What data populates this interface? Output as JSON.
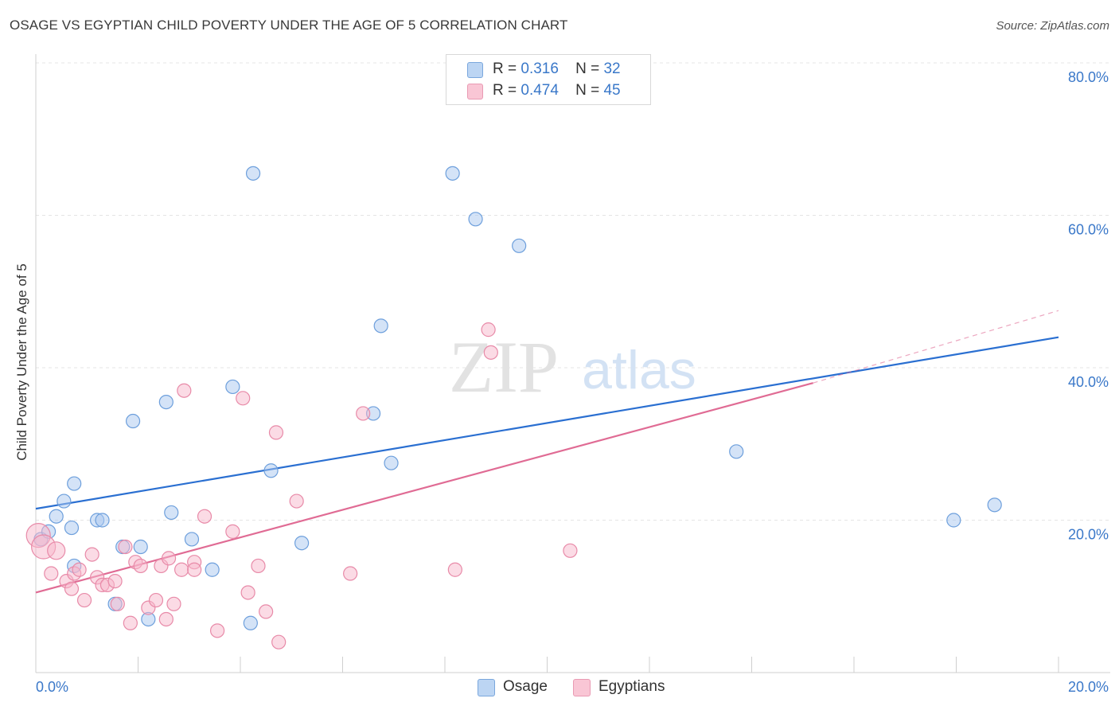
{
  "title": "OSAGE VS EGYPTIAN CHILD POVERTY UNDER THE AGE OF 5 CORRELATION CHART",
  "source": "Source: ZipAtlas.com",
  "watermark": {
    "zip": "ZIP",
    "atlas": "atlas"
  },
  "colors": {
    "osage": "#a9c8f0",
    "osage_stroke": "#6d9fdc",
    "osage_line": "#2a6fd1",
    "egyptians": "#f7b8cb",
    "egyptians_stroke": "#e88aa8",
    "egyptians_line": "#e06b94",
    "tick_label": "#3a78c9"
  },
  "legend_top": {
    "rows": [
      {
        "r_label": "R =",
        "r_value": "0.316",
        "n_label": "N =",
        "n_value": "32"
      },
      {
        "r_label": "R =",
        "r_value": "0.474",
        "n_label": "N =",
        "n_value": "45"
      }
    ]
  },
  "chart_data": {
    "type": "scatter",
    "title": "OSAGE VS EGYPTIAN CHILD POVERTY UNDER THE AGE OF 5 CORRELATION CHART",
    "xlabel": "",
    "ylabel": "Child Poverty Under the Age of 5",
    "xlim": [
      0,
      20
    ],
    "ylim": [
      0,
      80
    ],
    "x_tick_labels": [
      "0.0%",
      "20.0%"
    ],
    "y_ticks": [
      20,
      40,
      60,
      80
    ],
    "y_tick_labels": [
      "20.0%",
      "40.0%",
      "60.0%",
      "80.0%"
    ],
    "grid": true,
    "legend": "bottom-center",
    "series": [
      {
        "name": "Osage",
        "points": [
          [
            0.1,
            17.5
          ],
          [
            0.25,
            18.5
          ],
          [
            0.4,
            20.5
          ],
          [
            0.55,
            22.5
          ],
          [
            0.75,
            24.8
          ],
          [
            0.7,
            19
          ],
          [
            0.75,
            14
          ],
          [
            1.2,
            20
          ],
          [
            1.3,
            20
          ],
          [
            1.55,
            9
          ],
          [
            1.7,
            16.5
          ],
          [
            1.9,
            33
          ],
          [
            2.05,
            16.5
          ],
          [
            2.2,
            7
          ],
          [
            2.55,
            35.5
          ],
          [
            2.65,
            21
          ],
          [
            3.05,
            17.5
          ],
          [
            3.45,
            13.5
          ],
          [
            3.85,
            37.5
          ],
          [
            4.2,
            6.5
          ],
          [
            4.25,
            65.5
          ],
          [
            4.6,
            26.5
          ],
          [
            5.2,
            17
          ],
          [
            6.6,
            34
          ],
          [
            6.75,
            45.5
          ],
          [
            6.95,
            27.5
          ],
          [
            8.15,
            65.5
          ],
          [
            8.6,
            59.5
          ],
          [
            9.45,
            56
          ],
          [
            13.7,
            29
          ],
          [
            17.95,
            20
          ],
          [
            18.75,
            22
          ]
        ],
        "trend": {
          "x": [
            0,
            20
          ],
          "y": [
            21.5,
            44
          ]
        },
        "R": 0.316,
        "N": 32
      },
      {
        "name": "Egyptians",
        "points": [
          [
            0.05,
            18
          ],
          [
            0.15,
            16.5
          ],
          [
            0.3,
            13
          ],
          [
            0.4,
            16
          ],
          [
            0.6,
            12
          ],
          [
            0.7,
            11
          ],
          [
            0.75,
            13
          ],
          [
            0.85,
            13.5
          ],
          [
            0.95,
            9.5
          ],
          [
            1.1,
            15.5
          ],
          [
            1.2,
            12.5
          ],
          [
            1.3,
            11.5
          ],
          [
            1.4,
            11.5
          ],
          [
            1.55,
            12
          ],
          [
            1.6,
            9
          ],
          [
            1.75,
            16.5
          ],
          [
            1.85,
            6.5
          ],
          [
            1.95,
            14.5
          ],
          [
            2.05,
            14
          ],
          [
            2.2,
            8.5
          ],
          [
            2.35,
            9.5
          ],
          [
            2.45,
            14
          ],
          [
            2.55,
            7
          ],
          [
            2.6,
            15
          ],
          [
            2.7,
            9
          ],
          [
            2.85,
            13.5
          ],
          [
            2.9,
            37
          ],
          [
            3.1,
            14.5
          ],
          [
            3.1,
            13.5
          ],
          [
            3.3,
            20.5
          ],
          [
            3.55,
            5.5
          ],
          [
            3.85,
            18.5
          ],
          [
            4.05,
            36
          ],
          [
            4.15,
            10.5
          ],
          [
            4.35,
            14
          ],
          [
            4.5,
            8
          ],
          [
            4.7,
            31.5
          ],
          [
            4.75,
            4
          ],
          [
            5.1,
            22.5
          ],
          [
            6.15,
            13
          ],
          [
            6.4,
            34
          ],
          [
            8.2,
            13.5
          ],
          [
            8.85,
            45
          ],
          [
            8.9,
            42
          ],
          [
            10.45,
            16
          ]
        ],
        "trend": {
          "x": [
            0,
            15.2
          ],
          "y": [
            10.5,
            38
          ]
        },
        "trend_dashed": {
          "x": [
            15.2,
            20
          ],
          "y": [
            38,
            47.5
          ]
        },
        "R": 0.474,
        "N": 45
      }
    ]
  }
}
